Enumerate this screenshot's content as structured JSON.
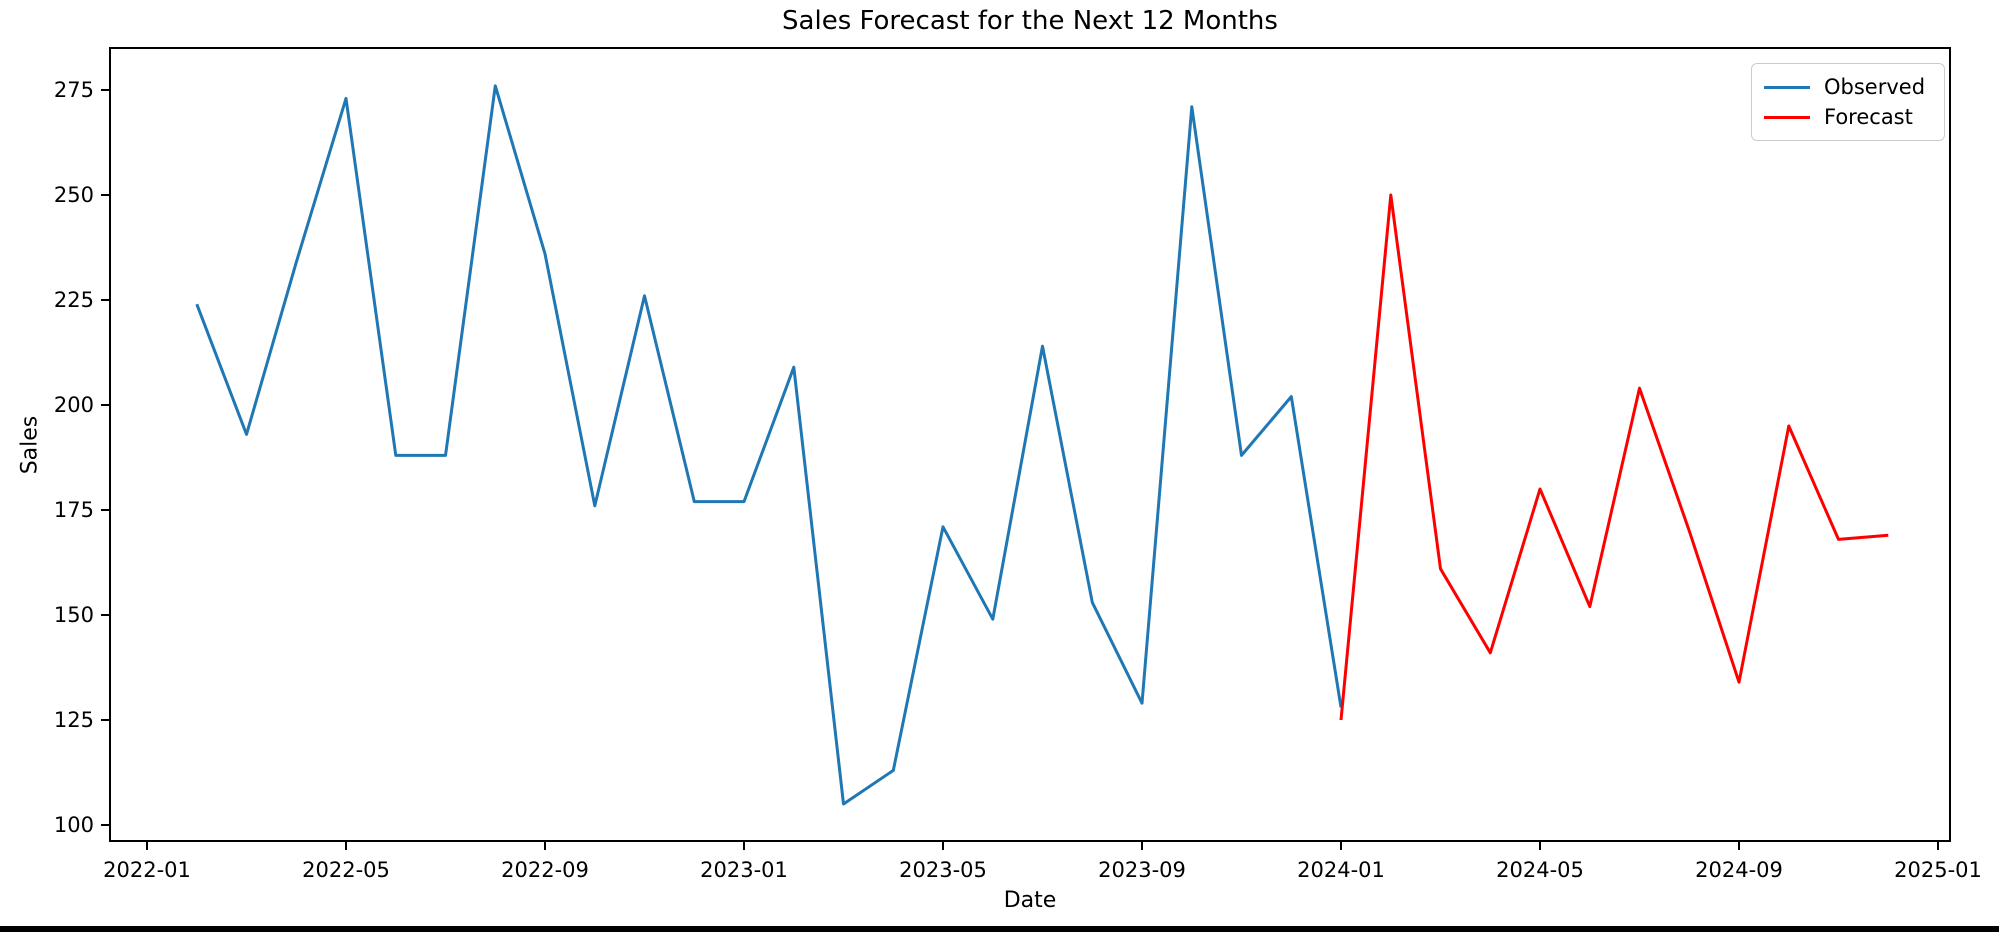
{
  "page": {
    "background": "#ffffff"
  },
  "chart_data": {
    "type": "line",
    "title": "Sales Forecast for the Next 12 Months",
    "xlabel": "Date",
    "ylabel": "Sales",
    "grid": false,
    "legend_position": "upper right",
    "x_tick_labels": [
      "2022-01",
      "2022-05",
      "2022-09",
      "2023-01",
      "2023-05",
      "2023-09",
      "2024-01",
      "2024-05",
      "2024-09",
      "2025-01"
    ],
    "y_tick_labels": [
      100,
      125,
      150,
      175,
      200,
      225,
      250,
      275
    ],
    "ylim": [
      96,
      285
    ],
    "xlim": [
      "2021-12",
      "2025-02"
    ],
    "series": [
      {
        "name": "Observed",
        "color": "#1f77b4",
        "x": [
          "2022-02",
          "2022-03",
          "2022-04",
          "2022-05",
          "2022-06",
          "2022-07",
          "2022-08",
          "2022-09",
          "2022-10",
          "2022-11",
          "2022-12",
          "2023-01",
          "2023-02",
          "2023-03",
          "2023-04",
          "2023-05",
          "2023-06",
          "2023-07",
          "2023-08",
          "2023-09",
          "2023-10",
          "2023-11",
          "2023-12",
          "2024-01"
        ],
        "y": [
          224,
          193,
          234,
          273,
          188,
          188,
          276,
          236,
          176,
          226,
          177,
          177,
          209,
          105,
          113,
          171,
          149,
          214,
          153,
          129,
          271,
          188,
          202,
          128
        ]
      },
      {
        "name": "Forecast",
        "color": "#ff0000",
        "x": [
          "2024-01",
          "2024-02",
          "2024-03",
          "2024-04",
          "2024-05",
          "2024-06",
          "2024-07",
          "2024-08",
          "2024-09",
          "2024-10",
          "2024-11",
          "2024-12"
        ],
        "y": [
          125,
          250,
          161,
          141,
          180,
          152,
          204,
          170,
          134,
          195,
          168,
          169
        ]
      }
    ]
  },
  "legend": {
    "items": [
      {
        "label": "Observed",
        "color": "#1f77b4"
      },
      {
        "label": "Forecast",
        "color": "#ff0000"
      }
    ]
  }
}
